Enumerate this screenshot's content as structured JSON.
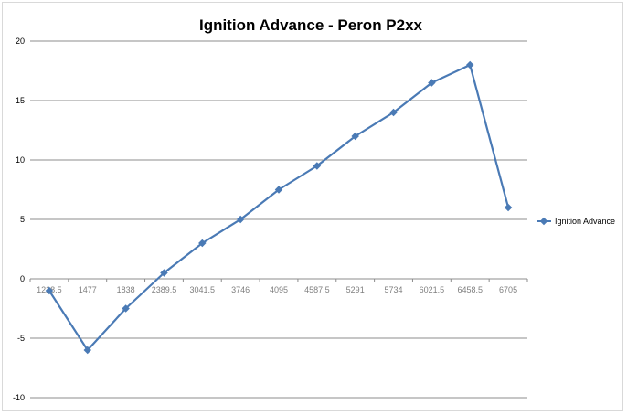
{
  "chart_data": {
    "type": "line",
    "title": "Ignition Advance - Peron P2xx",
    "xlabel": "",
    "ylabel": "",
    "categories": [
      "1228.5",
      "1477",
      "1838",
      "2389.5",
      "3041.5",
      "3746",
      "4095",
      "4587.5",
      "5291",
      "5734",
      "6021.5",
      "6458.5",
      "6705"
    ],
    "series": [
      {
        "name": "Ignition Advance",
        "values": [
          -1,
          -6,
          -2.5,
          0.5,
          3,
          5,
          7.5,
          9.5,
          12,
          14,
          16.5,
          18,
          6
        ],
        "color": "#4a7ab5"
      }
    ],
    "ylim": [
      -10,
      20
    ],
    "yticks": [
      -10,
      -5,
      0,
      5,
      10,
      15,
      20
    ],
    "grid": true,
    "legend": "right"
  }
}
